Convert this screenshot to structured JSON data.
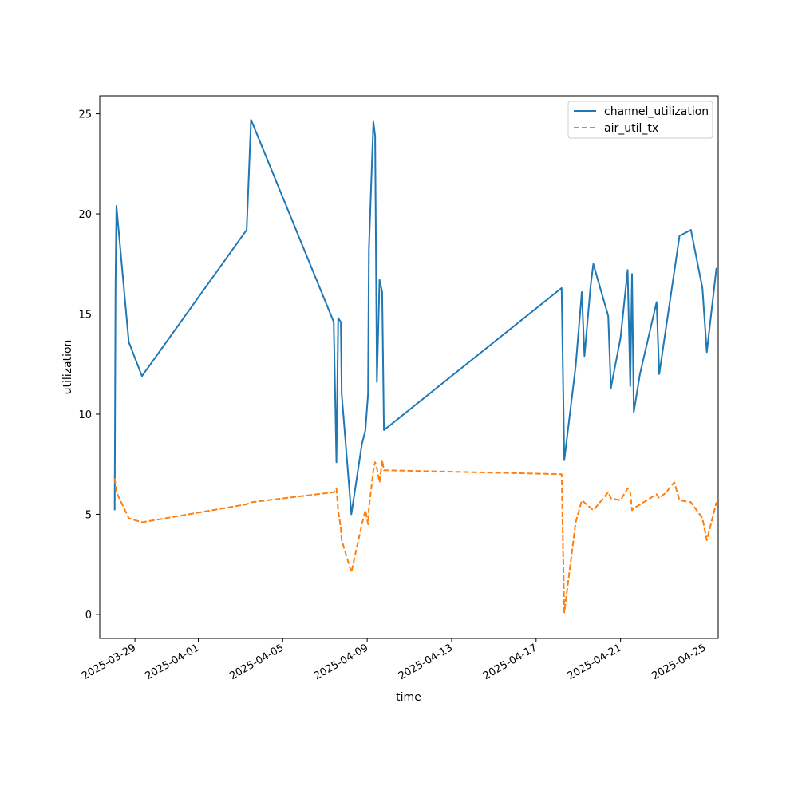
{
  "chart_data": {
    "type": "line",
    "xlabel": "time",
    "ylabel": "utilization",
    "xlim": [
      "2025-03-27T08:00",
      "2025-04-25T15:00"
    ],
    "ylim": [
      -1.2,
      25.9
    ],
    "x_ticks": [
      "2025-03-29",
      "2025-04-01",
      "2025-04-05",
      "2025-04-09",
      "2025-04-13",
      "2025-04-17",
      "2025-04-21",
      "2025-04-25"
    ],
    "y_ticks": [
      0,
      5,
      10,
      15,
      20,
      25
    ],
    "grid": false,
    "legend_position": "top-right",
    "series": [
      {
        "name": "channel_utilization",
        "color": "#1f77b4",
        "style": "solid",
        "points": [
          [
            "2025-03-28T01:00",
            5.2
          ],
          [
            "2025-03-28T02:00",
            16.5
          ],
          [
            "2025-03-28T03:00",
            20.4
          ],
          [
            "2025-03-28T17:00",
            13.6
          ],
          [
            "2025-03-29T08:00",
            11.9
          ],
          [
            "2025-04-03T07:00",
            19.2
          ],
          [
            "2025-04-03T12:00",
            24.7
          ],
          [
            "2025-04-07T10:00",
            14.6
          ],
          [
            "2025-04-07T13:00",
            7.6
          ],
          [
            "2025-04-07T15:00",
            14.8
          ],
          [
            "2025-04-07T18:00",
            14.6
          ],
          [
            "2025-04-07T19:00",
            11.0
          ],
          [
            "2025-04-08T06:00",
            5.0
          ],
          [
            "2025-04-08T18:00",
            8.5
          ],
          [
            "2025-04-08T22:00",
            9.2
          ],
          [
            "2025-04-09T01:00",
            11.0
          ],
          [
            "2025-04-09T02:00",
            18.2
          ],
          [
            "2025-04-09T07:00",
            24.6
          ],
          [
            "2025-04-09T09:00",
            23.9
          ],
          [
            "2025-04-09T11:00",
            11.6
          ],
          [
            "2025-04-09T14:00",
            16.7
          ],
          [
            "2025-04-09T17:00",
            16.1
          ],
          [
            "2025-04-09T19:00",
            9.2
          ],
          [
            "2025-04-18T05:00",
            16.3
          ],
          [
            "2025-04-18T08:00",
            7.7
          ],
          [
            "2025-04-18T21:00",
            12.4
          ],
          [
            "2025-04-19T04:00",
            16.1
          ],
          [
            "2025-04-19T07:00",
            12.9
          ],
          [
            "2025-04-19T14:00",
            16.4
          ],
          [
            "2025-04-19T17:00",
            17.5
          ],
          [
            "2025-04-20T10:00",
            14.9
          ],
          [
            "2025-04-20T13:00",
            11.3
          ],
          [
            "2025-04-21T00:00",
            13.8
          ],
          [
            "2025-04-21T08:00",
            17.2
          ],
          [
            "2025-04-21T11:00",
            11.4
          ],
          [
            "2025-04-21T13:00",
            17.0
          ],
          [
            "2025-04-21T15:00",
            10.1
          ],
          [
            "2025-04-21T22:00",
            12.0
          ],
          [
            "2025-04-22T17:00",
            15.6
          ],
          [
            "2025-04-22T20:00",
            12.0
          ],
          [
            "2025-04-23T19:00",
            18.9
          ],
          [
            "2025-04-24T08:00",
            19.2
          ],
          [
            "2025-04-24T21:00",
            16.3
          ],
          [
            "2025-04-25T02:00",
            13.1
          ],
          [
            "2025-04-25T13:00",
            17.3
          ]
        ]
      },
      {
        "name": "air_util_tx",
        "color": "#ff7f0e",
        "style": "dashed",
        "points": [
          [
            "2025-03-28T01:00",
            6.8
          ],
          [
            "2025-03-28T03:00",
            6.1
          ],
          [
            "2025-03-28T17:00",
            4.8
          ],
          [
            "2025-03-29T08:00",
            4.6
          ],
          [
            "2025-04-03T07:00",
            5.5
          ],
          [
            "2025-04-03T12:00",
            5.6
          ],
          [
            "2025-04-07T10:00",
            6.1
          ],
          [
            "2025-04-07T13:00",
            6.3
          ],
          [
            "2025-04-07T15:00",
            5.2
          ],
          [
            "2025-04-07T18:00",
            4.3
          ],
          [
            "2025-04-07T19:00",
            3.7
          ],
          [
            "2025-04-08T06:00",
            2.1
          ],
          [
            "2025-04-08T18:00",
            4.5
          ],
          [
            "2025-04-08T22:00",
            5.2
          ],
          [
            "2025-04-09T01:00",
            4.5
          ],
          [
            "2025-04-09T02:00",
            5.3
          ],
          [
            "2025-04-09T07:00",
            7.2
          ],
          [
            "2025-04-09T09:00",
            7.6
          ],
          [
            "2025-04-09T11:00",
            7.3
          ],
          [
            "2025-04-09T14:00",
            6.6
          ],
          [
            "2025-04-09T17:00",
            7.7
          ],
          [
            "2025-04-09T19:00",
            7.2
          ],
          [
            "2025-04-18T05:00",
            7.0
          ],
          [
            "2025-04-18T08:00",
            0.1
          ],
          [
            "2025-04-18T21:00",
            4.6
          ],
          [
            "2025-04-19T04:00",
            5.7
          ],
          [
            "2025-04-19T17:00",
            5.2
          ],
          [
            "2025-04-20T10:00",
            6.1
          ],
          [
            "2025-04-20T13:00",
            5.8
          ],
          [
            "2025-04-21T00:00",
            5.7
          ],
          [
            "2025-04-21T08:00",
            6.3
          ],
          [
            "2025-04-21T11:00",
            6.1
          ],
          [
            "2025-04-21T13:00",
            5.2
          ],
          [
            "2025-04-21T15:00",
            5.3
          ],
          [
            "2025-04-22T17:00",
            6.0
          ],
          [
            "2025-04-22T20:00",
            5.8
          ],
          [
            "2025-04-23T04:00",
            6.1
          ],
          [
            "2025-04-23T13:00",
            6.6
          ],
          [
            "2025-04-23T19:00",
            5.7
          ],
          [
            "2025-04-24T08:00",
            5.6
          ],
          [
            "2025-04-24T21:00",
            4.8
          ],
          [
            "2025-04-25T02:00",
            3.7
          ],
          [
            "2025-04-25T13:00",
            5.6
          ]
        ]
      }
    ]
  }
}
